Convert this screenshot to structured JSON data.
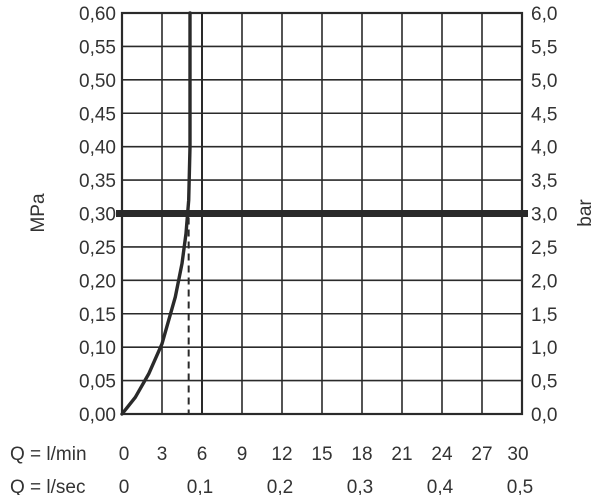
{
  "chart_data": {
    "type": "line",
    "left_axis": {
      "label": "MPa",
      "ylim": [
        0,
        0.6
      ],
      "ticks": [
        "0,00",
        "0,05",
        "0,10",
        "0,15",
        "0,20",
        "0,25",
        "0,30",
        "0,35",
        "0,40",
        "0,45",
        "0,50",
        "0,55",
        "0,60"
      ]
    },
    "right_axis": {
      "label": "bar",
      "ylim": [
        0,
        6
      ],
      "ticks": [
        "0,0",
        "0,5",
        "1,0",
        "1,5",
        "2,0",
        "2,5",
        "3,0",
        "3,5",
        "4,0",
        "4,5",
        "5,0",
        "5,5",
        "6,0"
      ]
    },
    "x_axes": [
      {
        "label": "Q = l/min",
        "xlim": [
          0,
          30
        ],
        "ticks": [
          {
            "v": 0,
            "t": "0"
          },
          {
            "v": 3,
            "t": "3"
          },
          {
            "v": 6,
            "t": "6"
          },
          {
            "v": 9,
            "t": "9"
          },
          {
            "v": 12,
            "t": "12"
          },
          {
            "v": 15,
            "t": "15"
          },
          {
            "v": 18,
            "t": "18"
          },
          {
            "v": 21,
            "t": "21"
          },
          {
            "v": 24,
            "t": "24"
          },
          {
            "v": 27,
            "t": "27"
          },
          {
            "v": 30,
            "t": "30"
          }
        ]
      },
      {
        "label": "Q = l/sec",
        "xlim": [
          0,
          0.5
        ],
        "ticks": [
          {
            "v": 0,
            "t": "0"
          },
          {
            "v": 0.1,
            "t": "0,1"
          },
          {
            "v": 0.2,
            "t": "0,2"
          },
          {
            "v": 0.3,
            "t": "0,3"
          },
          {
            "v": 0.4,
            "t": "0,4"
          },
          {
            "v": 0.5,
            "t": "0,5"
          }
        ]
      }
    ],
    "grid": true,
    "series": [
      {
        "x_lmin": [
          0,
          1,
          2,
          3,
          4,
          4.5,
          4.8,
          5.0,
          5.1,
          5.1,
          5.1
        ],
        "y_mpa": [
          0,
          0.025,
          0.06,
          0.105,
          0.175,
          0.225,
          0.27,
          0.32,
          0.4,
          0.52,
          0.6
        ]
      }
    ],
    "reference_line_mpa": 0.3,
    "marker_line_lmin": 5.0,
    "extra_vertical_lmin": 6.0,
    "colors": {
      "line": "#2a2a2a",
      "grid": "#2a2a2a",
      "text": "#333333"
    }
  }
}
